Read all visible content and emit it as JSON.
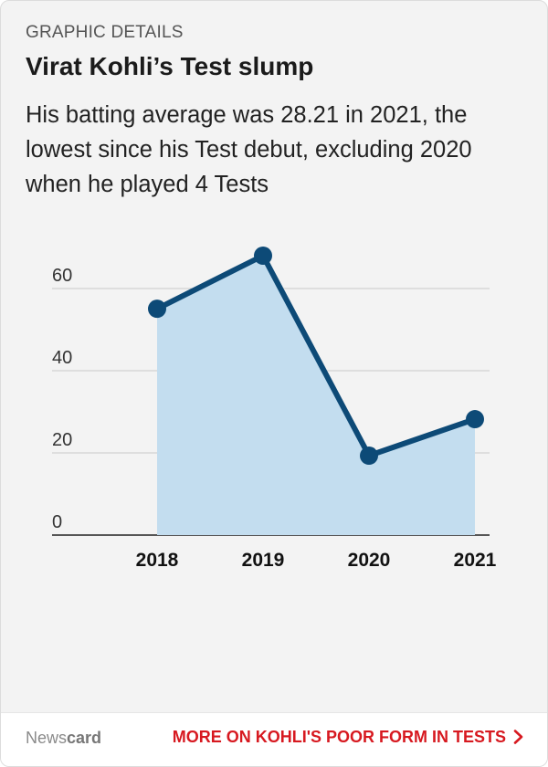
{
  "header": {
    "eyebrow": "GRAPHIC DETAILS",
    "title": "Virat Kohli’s Test slump",
    "subtitle": "His batting average was 28.21 in 2021, the lowest since his Test debut, excluding 2020 when he played 4 Tests"
  },
  "chart_data": {
    "type": "area",
    "title": "",
    "xlabel": "",
    "ylabel": "",
    "categories": [
      "2018",
      "2019",
      "2020",
      "2021"
    ],
    "series": [
      {
        "values": [
          55.08,
          68,
          19.33,
          28.21
        ]
      }
    ],
    "ylim": [
      0,
      70
    ],
    "yticks": [
      0,
      20,
      40,
      60
    ],
    "grid": true,
    "colors": {
      "line": "#0d4a77",
      "fill": "#c3ddef",
      "grid": "#c9c9c9",
      "axis": "#222222"
    }
  },
  "footer": {
    "brand_prefix": "News",
    "brand_suffix": "card",
    "more_link": "MORE ON KOHLI'S POOR FORM IN TESTS",
    "chevron_icon": "chevron-right-icon"
  }
}
